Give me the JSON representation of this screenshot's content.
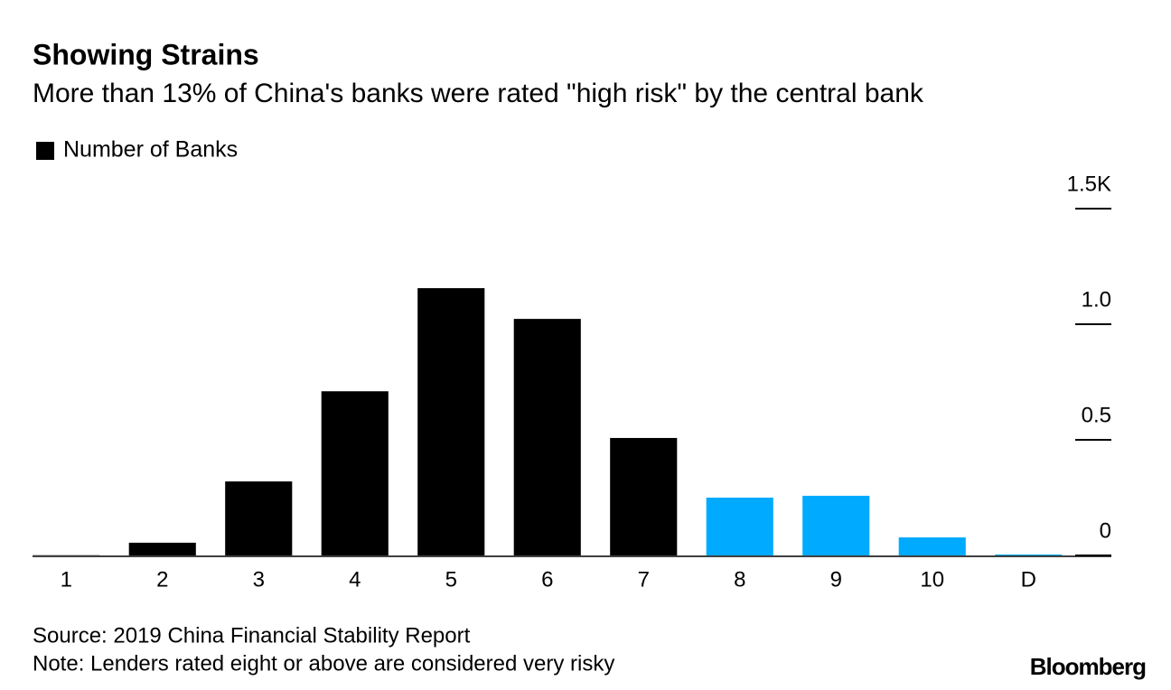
{
  "chart_data": {
    "type": "bar",
    "title": "Showing Strains",
    "subtitle": "More than 13% of China's banks were rated \"high risk\" by the central bank",
    "legend": [
      {
        "name": "Number of Banks",
        "color": "#000000"
      }
    ],
    "categories": [
      "1",
      "2",
      "3",
      "4",
      "5",
      "6",
      "7",
      "8",
      "9",
      "10",
      "D"
    ],
    "values": [
      0.001,
      0.055,
      0.32,
      0.71,
      1.156,
      1.023,
      0.508,
      0.25,
      0.258,
      0.078,
      0.004
    ],
    "colors": [
      "#000000",
      "#000000",
      "#000000",
      "#000000",
      "#000000",
      "#000000",
      "#000000",
      "#00aaff",
      "#00aaff",
      "#00aaff",
      "#00aaff"
    ],
    "ylim": [
      0,
      1.5
    ],
    "yticks": [
      0,
      0.5,
      {
        "value": 1,
        "label": "1.0"
      },
      {
        "value": 1.5,
        "label": "1.5K"
      }
    ],
    "y_axis_side": "right",
    "source": "Source: 2019 China Financial Stability Report",
    "note": "Note: Lenders rated eight or above are considered very risky",
    "brand": "Bloomberg"
  }
}
